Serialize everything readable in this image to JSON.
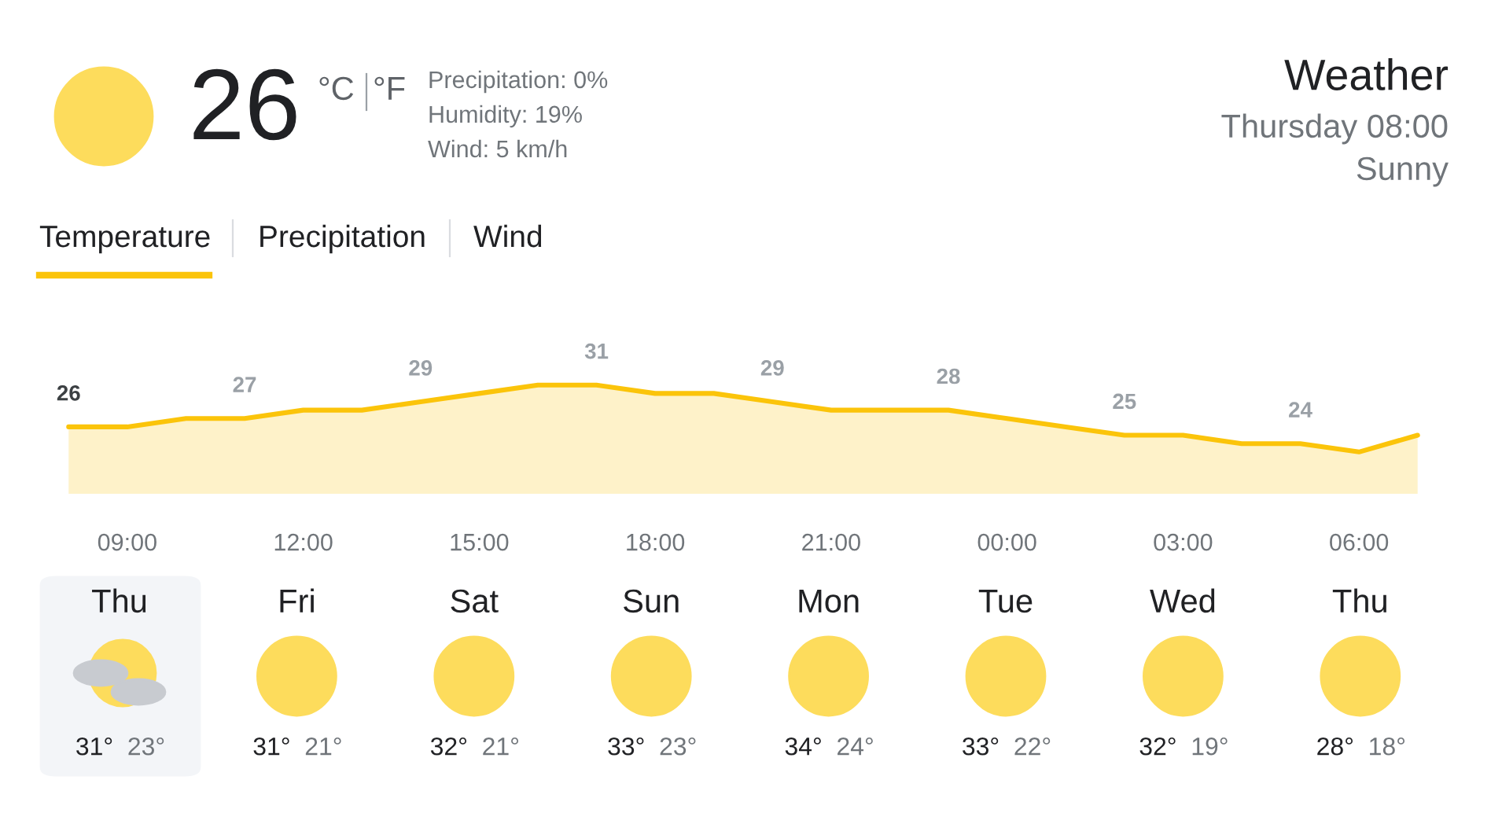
{
  "chart_data": {
    "type": "area",
    "title": "Weather",
    "subtitle": "Thursday 08:00",
    "categories": [
      null,
      "09:00",
      null,
      null,
      "12:00",
      null,
      null,
      "15:00",
      null,
      null,
      "18:00",
      null,
      null,
      "21:00",
      null,
      null,
      "00:00",
      null,
      null,
      "03:00",
      null,
      null,
      "06:00",
      null
    ],
    "series": [
      {
        "color": "#fbc40a",
        "values": [
          26,
          26,
          27,
          27,
          28,
          28,
          29,
          30,
          31,
          31,
          30,
          30,
          29,
          28,
          28,
          28,
          27,
          26,
          25,
          25,
          24,
          24,
          23,
          25
        ],
        "value_labels": [
          "26",
          null,
          null,
          "27",
          null,
          null,
          "29",
          null,
          null,
          "31",
          null,
          null,
          "29",
          null,
          null,
          "28",
          null,
          null,
          "25",
          null,
          null,
          "24",
          null,
          null
        ]
      }
    ],
    "tick_labels": "x",
    "annotations": [
      "Sunny",
      "26",
      "°C",
      "°F",
      "Precipitation: 0%",
      "Humidity: 19%",
      "Wind: 5 km/h",
      "Temperature",
      "Precipitation",
      "Wind",
      "Thu",
      "31°",
      "23°",
      "Fri",
      "31°",
      "21°",
      "Sat",
      "32°",
      "21°",
      "Sun",
      "33°",
      "23°",
      "Mon",
      "34°",
      "24°",
      "Tue",
      "33°",
      "22°",
      "Wed",
      "32°",
      "19°",
      "Thu",
      "28°",
      "18°"
    ]
  }
}
